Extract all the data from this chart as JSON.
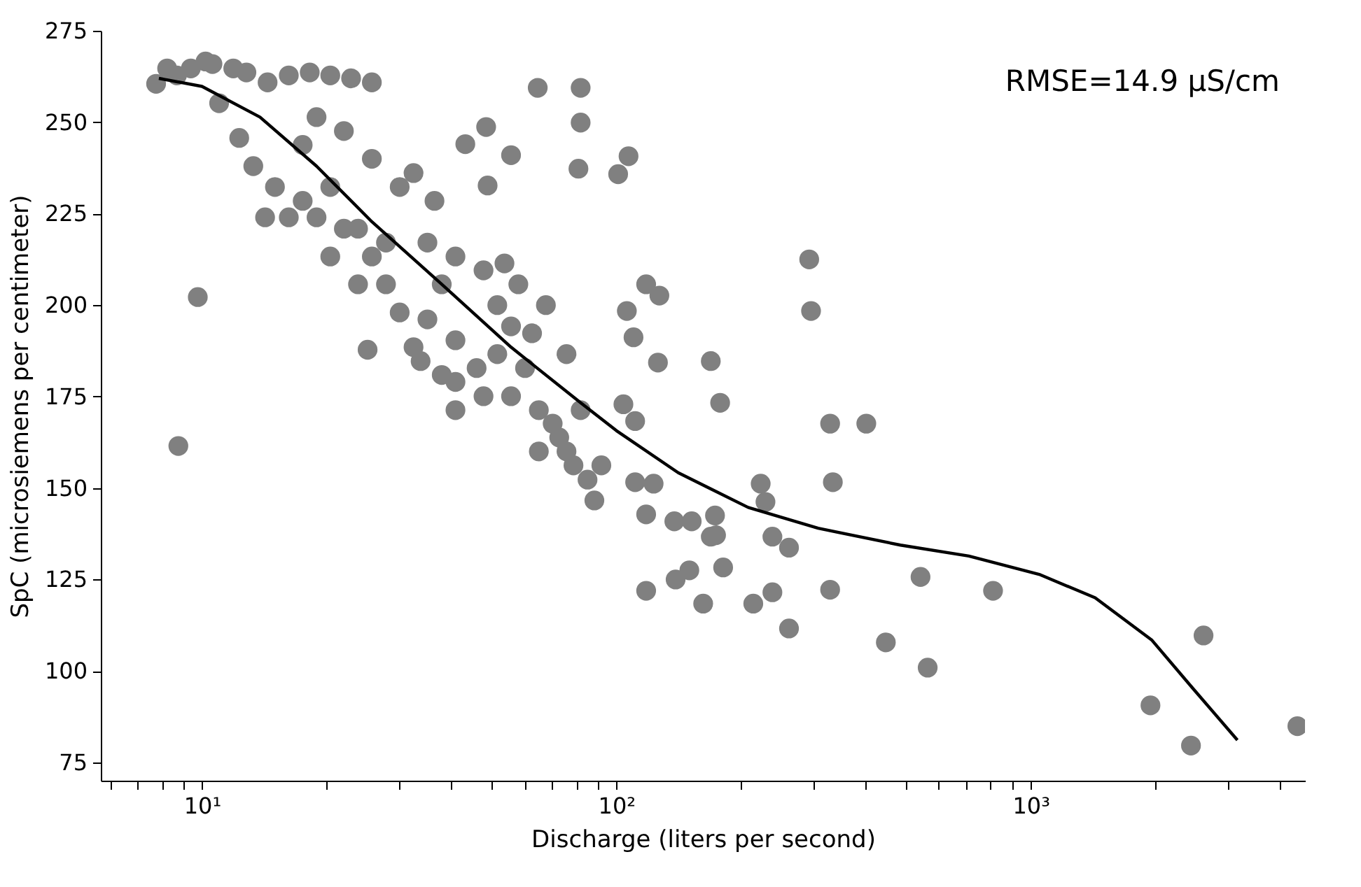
{
  "chart_data": {
    "type": "scatter",
    "xlabel": "Discharge (liters per second)",
    "ylabel": "SpC (microsiemens per centimeter)",
    "log": "x",
    "grid": false,
    "xlim": [
      5.7,
      4590
    ],
    "ylim": [
      70,
      275
    ],
    "xticks": [
      {
        "value": 6,
        "label": null
      },
      {
        "value": 7,
        "label": null
      },
      {
        "value": 8,
        "label": null
      },
      {
        "value": 9,
        "label": null
      },
      {
        "value": 10,
        "label": "10¹"
      },
      {
        "value": 20,
        "label": null
      },
      {
        "value": 30,
        "label": null
      },
      {
        "value": 40,
        "label": null
      },
      {
        "value": 50,
        "label": null
      },
      {
        "value": 60,
        "label": null
      },
      {
        "value": 70,
        "label": null
      },
      {
        "value": 80,
        "label": null
      },
      {
        "value": 90,
        "label": null
      },
      {
        "value": 100,
        "label": "10²"
      },
      {
        "value": 200,
        "label": null
      },
      {
        "value": 300,
        "label": null
      },
      {
        "value": 400,
        "label": null
      },
      {
        "value": 500,
        "label": null
      },
      {
        "value": 600,
        "label": null
      },
      {
        "value": 700,
        "label": null
      },
      {
        "value": 800,
        "label": null
      },
      {
        "value": 900,
        "label": null
      },
      {
        "value": 1000,
        "label": "10³"
      },
      {
        "value": 2000,
        "label": null
      },
      {
        "value": 3000,
        "label": null
      },
      {
        "value": 4000,
        "label": null
      }
    ],
    "yticks": [
      75,
      100,
      125,
      150,
      175,
      200,
      225,
      250,
      275
    ],
    "annotations": [
      "RMSE=14.9 µS/cm"
    ],
    "series": [
      {
        "color": "#808080",
        "marker": "circle",
        "x": [
          8.77,
          9.77,
          7.75,
          8.24,
          10.2,
          25.1,
          64.6,
          82,
          82,
          81,
          101,
          107,
          55.7,
          48.9,
          48.5,
          43.2,
          292,
          295,
          328,
          401,
          169,
          178,
          118,
          127,
          106,
          110,
          126,
          104,
          111,
          223,
          229,
          333,
          111,
          123,
          118,
          138,
          152,
          173,
          169,
          174,
          238,
          261,
          181,
          150,
          139,
          118,
          162,
          214,
          238,
          328,
          542,
          261,
          447,
          564,
          811,
          1945,
          2436,
          2612,
          4400,
          8.7,
          9.4,
          10.6,
          11.9,
          12.8,
          14.4,
          16.2,
          18.2,
          20.4,
          22.9,
          25.7,
          11.0,
          12.3,
          13.3,
          14.2,
          16.2,
          18.9,
          22.0,
          17.5,
          20.4,
          23.8,
          25.7,
          27.8,
          30.0,
          32.4,
          35.0,
          37.9,
          40.9,
          46.0,
          51.6,
          55.7,
          60.2,
          65.0,
          70.2,
          75.8,
          85.2,
          88.5,
          78.8,
          92.0,
          30.0,
          32.4,
          36.4,
          25.7,
          22.0,
          18.9,
          35.0,
          40.9,
          47.8,
          53.7,
          58.0,
          51.6,
          40.9,
          40.9,
          47.8,
          62.6,
          67.6,
          75.8,
          82,
          65.0,
          72.8,
          55.7,
          33.7,
          37.9,
          23.8,
          27.8,
          20.4,
          17.5,
          15.0
        ],
        "values": [
          161.5,
          202.2,
          260.5,
          264.7,
          266.6,
          187.8,
          259.4,
          259.4,
          249.9,
          237.3,
          235.8,
          240.7,
          241,
          232.7,
          248.7,
          244,
          212.5,
          198.4,
          167.6,
          167.6,
          184.7,
          173.3,
          205.7,
          202.6,
          198.4,
          191.2,
          184.3,
          172.9,
          168.3,
          151.2,
          146.2,
          151.6,
          151.6,
          151.2,
          142.8,
          140.9,
          140.9,
          142.5,
          136.7,
          137.1,
          136.7,
          133.7,
          128.3,
          127.5,
          125.0,
          121.9,
          118.4,
          118.4,
          121.5,
          122.2,
          125.7,
          111.6,
          107.8,
          100.9,
          121.9,
          90.6,
          79.6,
          109.7,
          84.9,
          262.8,
          264.7,
          265.9,
          264.7,
          263.6,
          260.9,
          262.8,
          263.6,
          262.8,
          262.0,
          260.9,
          255.2,
          245.7,
          238.0,
          224.0,
          224.0,
          224.0,
          220.9,
          243.8,
          232.3,
          220.9,
          213.3,
          205.7,
          198.0,
          188.5,
          196.1,
          205.7,
          190.4,
          182.8,
          186.6,
          175.1,
          182.8,
          171.3,
          167.6,
          160.0,
          152.3,
          146.6,
          156.2,
          156.2,
          232.3,
          236.1,
          228.5,
          240.0,
          247.6,
          251.4,
          217.1,
          213.3,
          209.5,
          211.4,
          205.7,
          200.0,
          179.0,
          171.3,
          175.1,
          192.3,
          200.0,
          186.6,
          171.3,
          160.0,
          163.8,
          194.2,
          184.7,
          180.9,
          205.7,
          217.1,
          213.3,
          228.5,
          232.3
        ]
      },
      {
        "type": "line",
        "color": "#000000",
        "line_style": "solid",
        "marker": "none",
        "x": [
          7.87,
          10,
          13.8,
          18.9,
          25.7,
          37.9,
          55.7,
          82,
          100,
          141,
          208,
          307,
          485,
          709,
          1048,
          1430,
          1957,
          2463,
          3153
        ],
        "values": [
          262.0,
          259.8,
          251.4,
          238.0,
          222.8,
          205.7,
          188.5,
          173.3,
          165.7,
          154.2,
          144.7,
          139.0,
          134.4,
          131.4,
          126.4,
          120.0,
          108.5,
          95.2,
          81.1
        ]
      }
    ]
  }
}
